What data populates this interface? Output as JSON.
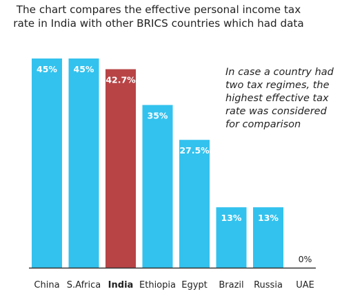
{
  "chart_data": {
    "type": "bar",
    "title": "The chart compares the effective personal income tax rate in India with other BRICS countries which had data",
    "annotation": "In case a country had two tax regimes, the highest effective tax rate was considered for comparison",
    "categories": [
      "China",
      "S.Africa",
      "India",
      "Ethiopia",
      "Egypt",
      "Brazil",
      "Russia",
      "UAE"
    ],
    "values": [
      45,
      45,
      42.7,
      35,
      27.5,
      13,
      13,
      0
    ],
    "value_labels": [
      "45%",
      "45%",
      "42.7%",
      "35%",
      "27.5%",
      "13%",
      "13%",
      "0%"
    ],
    "highlight_category": "India",
    "ylim": [
      0,
      45
    ],
    "grid": false,
    "legend": "none",
    "colors": {
      "default_bar": "#33c2ee",
      "highlight_bar": "#b84446",
      "axis": "#333333",
      "label_light": "#ffffff",
      "label_dark": "#222222"
    }
  }
}
